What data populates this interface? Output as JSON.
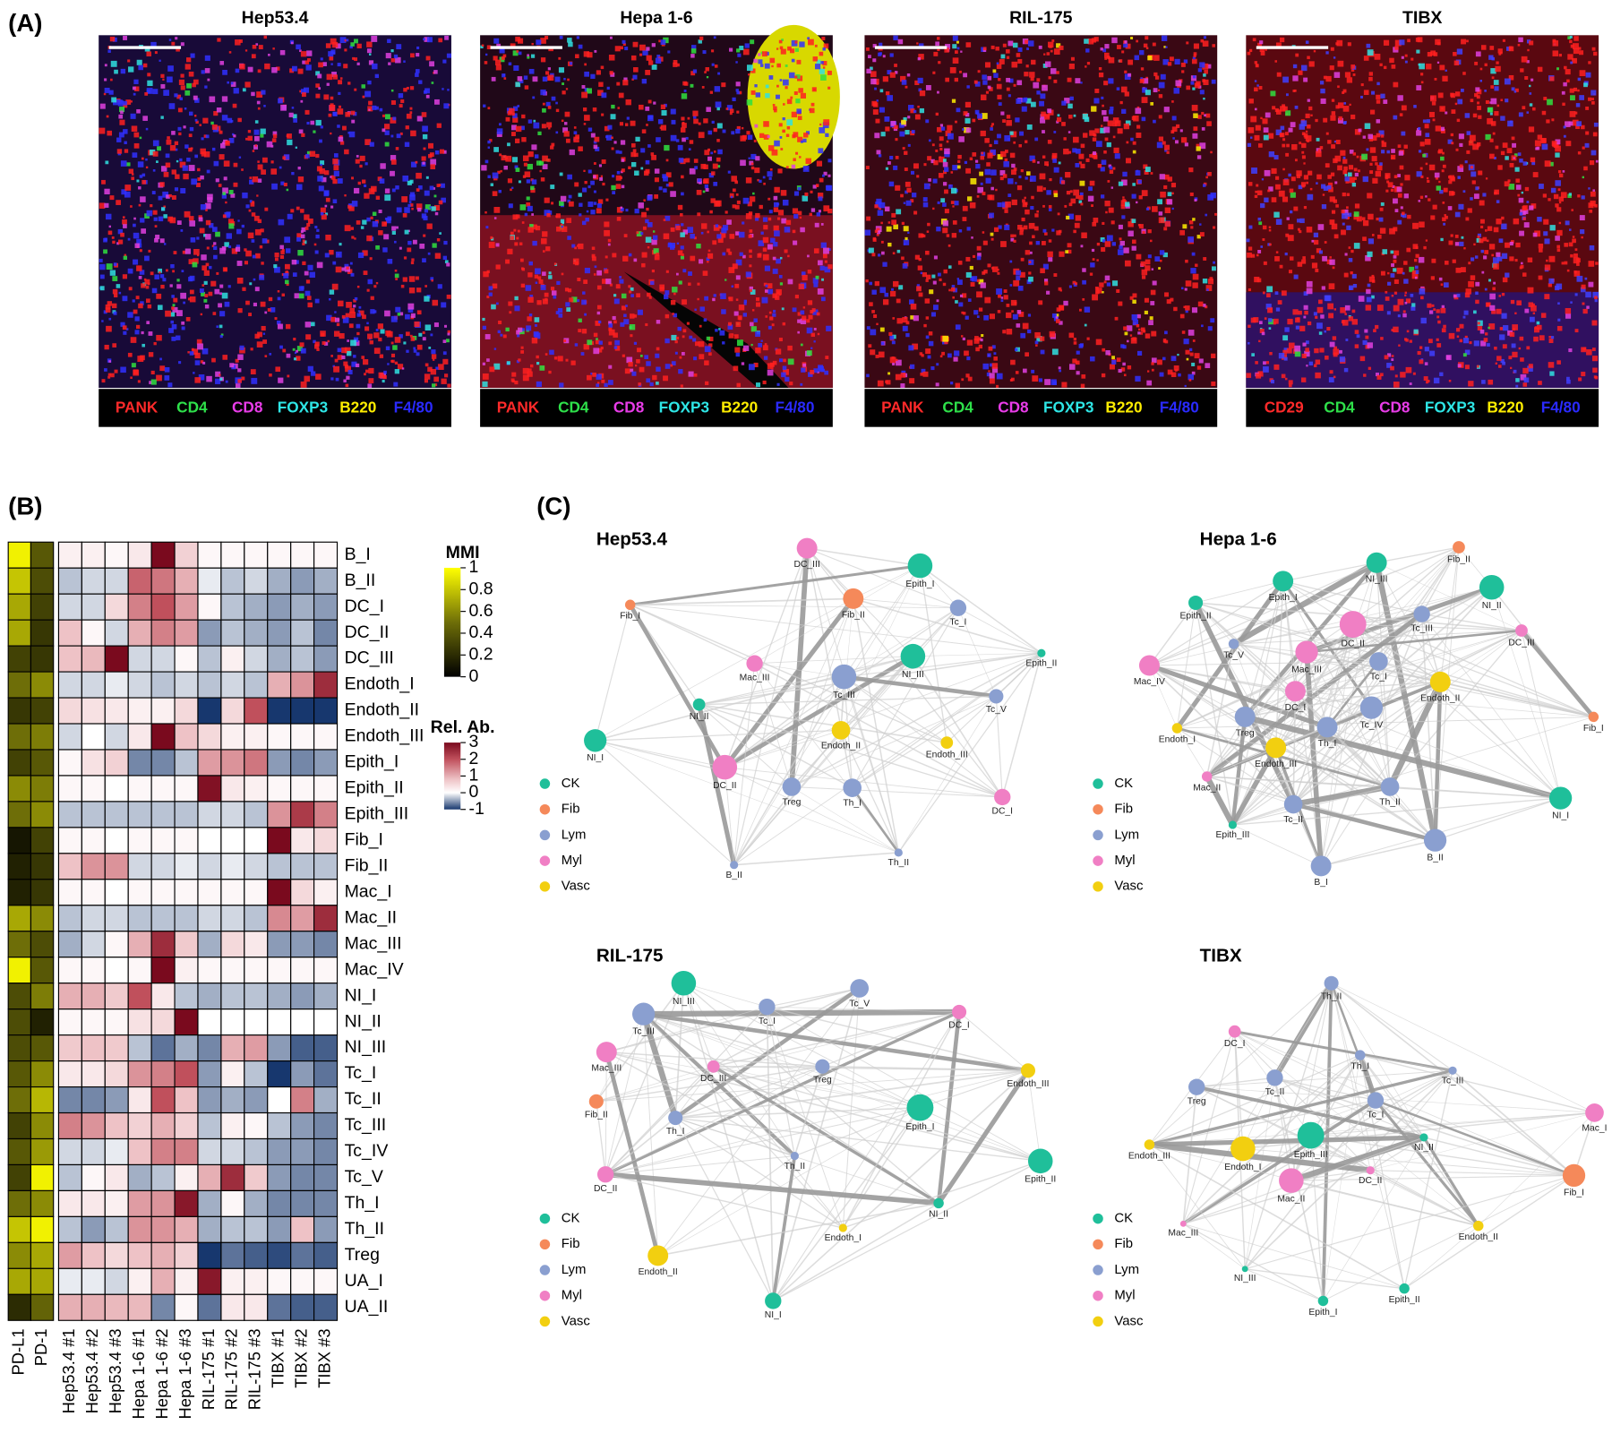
{
  "panels": {
    "A": "(A)",
    "B": "(B)",
    "C": "(C)"
  },
  "images": [
    {
      "title": "Hep53.4",
      "markers": [
        {
          "name": "PANK",
          "color": "#ff2a2a"
        },
        {
          "name": "CD4",
          "color": "#2ee04a"
        },
        {
          "name": "CD8",
          "color": "#e83ce8"
        },
        {
          "name": "FOXP3",
          "color": "#2ee6e6"
        },
        {
          "name": "B220",
          "color": "#ffee00"
        },
        {
          "name": "F4/80",
          "color": "#2a2aff"
        }
      ]
    },
    {
      "title": "Hepa 1-6",
      "markers": [
        {
          "name": "PANK",
          "color": "#ff2a2a"
        },
        {
          "name": "CD4",
          "color": "#2ee04a"
        },
        {
          "name": "CD8",
          "color": "#e83ce8"
        },
        {
          "name": "FOXP3",
          "color": "#2ee6e6"
        },
        {
          "name": "B220",
          "color": "#ffee00"
        },
        {
          "name": "F4/80",
          "color": "#2a2aff"
        }
      ]
    },
    {
      "title": "RIL-175",
      "markers": [
        {
          "name": "PANK",
          "color": "#ff2a2a"
        },
        {
          "name": "CD4",
          "color": "#2ee04a"
        },
        {
          "name": "CD8",
          "color": "#e83ce8"
        },
        {
          "name": "FOXP3",
          "color": "#2ee6e6"
        },
        {
          "name": "B220",
          "color": "#ffee00"
        },
        {
          "name": "F4/80",
          "color": "#2a2aff"
        }
      ]
    },
    {
      "title": "TIBX",
      "markers": [
        {
          "name": "CD29",
          "color": "#ff2a2a"
        },
        {
          "name": "CD4",
          "color": "#2ee04a"
        },
        {
          "name": "CD8",
          "color": "#e83ce8"
        },
        {
          "name": "FOXP3",
          "color": "#2ee6e6"
        },
        {
          "name": "B220",
          "color": "#ffee00"
        },
        {
          "name": "F4/80",
          "color": "#2a2aff"
        }
      ]
    }
  ],
  "heatmap": {
    "rows": [
      "B_I",
      "B_II",
      "DC_I",
      "DC_II",
      "DC_III",
      "Endoth_I",
      "Endoth_II",
      "Endoth_III",
      "Epith_I",
      "Epith_II",
      "Epith_III",
      "Fib_I",
      "Fib_II",
      "Mac_I",
      "Mac_II",
      "Mac_III",
      "Mac_IV",
      "NI_I",
      "NI_II",
      "NI_III",
      "Tc_I",
      "Tc_II",
      "Tc_III",
      "Tc_IV",
      "Tc_V",
      "Th_I",
      "Th_II",
      "Treg",
      "UA_I",
      "UA_II"
    ],
    "mmi_columns": [
      "PD-L1",
      "PD-1"
    ],
    "mmi": [
      [
        0.95,
        0.4
      ],
      [
        0.8,
        0.35
      ],
      [
        0.7,
        0.3
      ],
      [
        0.7,
        0.25
      ],
      [
        0.3,
        0.25
      ],
      [
        0.5,
        0.6
      ],
      [
        0.25,
        0.3
      ],
      [
        0.5,
        0.55
      ],
      [
        0.3,
        0.4
      ],
      [
        0.6,
        0.55
      ],
      [
        0.5,
        0.6
      ],
      [
        0.1,
        0.3
      ],
      [
        0.15,
        0.25
      ],
      [
        0.15,
        0.25
      ],
      [
        0.7,
        0.6
      ],
      [
        0.5,
        0.35
      ],
      [
        0.95,
        0.4
      ],
      [
        0.35,
        0.55
      ],
      [
        0.35,
        0.15
      ],
      [
        0.35,
        0.4
      ],
      [
        0.4,
        0.6
      ],
      [
        0.5,
        0.75
      ],
      [
        0.3,
        0.6
      ],
      [
        0.4,
        0.65
      ],
      [
        0.3,
        0.95
      ],
      [
        0.5,
        0.6
      ],
      [
        0.8,
        0.95
      ],
      [
        0.6,
        0.7
      ],
      [
        0.7,
        0.7
      ],
      [
        0.2,
        0.45
      ]
    ],
    "columns": [
      "Hep53.4 #1",
      "Hep53.4 #2",
      "Hep53.4 #3",
      "Hepa 1-6 #1",
      "Hepa 1-6 #2",
      "Hepa 1-6 #3",
      "RIL-175 #1",
      "RIL-175 #2",
      "RIL-175 #3",
      "TIBX #1",
      "TIBX #2",
      "TIBX #3"
    ],
    "values": [
      [
        0.2,
        0.2,
        0.1,
        0.3,
        3,
        0.6,
        0.1,
        0.1,
        0.1,
        0.1,
        0.1,
        0.1
      ],
      [
        -0.3,
        -0.2,
        -0.2,
        1.8,
        1.6,
        1,
        -0.1,
        -0.3,
        -0.2,
        -0.4,
        -0.5,
        -0.4
      ],
      [
        -0.2,
        -0.2,
        0.5,
        1.5,
        2,
        1.2,
        0.1,
        -0.3,
        -0.4,
        -0.5,
        -0.4,
        -0.5
      ],
      [
        0.8,
        0.1,
        -0.2,
        1,
        1.5,
        1.2,
        -0.5,
        -0.3,
        -0.4,
        -0.5,
        -0.3,
        -0.6
      ],
      [
        0.8,
        0.9,
        3,
        -0.2,
        -0.2,
        0.1,
        -0.3,
        0.2,
        -0.2,
        -0.4,
        -0.3,
        -0.5
      ],
      [
        -0.2,
        -0.2,
        -0.1,
        -0.2,
        -0.3,
        -0.2,
        -0.3,
        -0.2,
        -0.3,
        1,
        1.3,
        2.5
      ],
      [
        0.5,
        0.4,
        0.3,
        0.2,
        0.2,
        0.5,
        -1,
        0.5,
        2,
        -1,
        -1,
        -1
      ],
      [
        -0.2,
        0,
        -0.2,
        0.3,
        3,
        0.8,
        0.5,
        0.2,
        0.2,
        0.1,
        0.1,
        0.1
      ],
      [
        0.1,
        0.4,
        0.6,
        -0.6,
        -0.6,
        -0.3,
        1.2,
        1.3,
        1.6,
        -0.5,
        -0.6,
        -0.5
      ],
      [
        0.1,
        0.1,
        0,
        0.1,
        0.1,
        0.1,
        2.9,
        0.3,
        0.2,
        0.1,
        0.1,
        0.1
      ],
      [
        -0.3,
        -0.3,
        -0.3,
        -0.3,
        -0.3,
        -0.3,
        -0.2,
        -0.2,
        -0.3,
        1.3,
        2.3,
        1.5
      ],
      [
        0.1,
        0.1,
        0,
        0.1,
        0.1,
        0.1,
        0,
        0,
        0,
        3,
        0.3,
        0.5
      ],
      [
        0.8,
        1.3,
        1.3,
        -0.2,
        -0.2,
        -0.1,
        -0.2,
        -0.1,
        -0.2,
        -0.3,
        -0.3,
        -0.3
      ],
      [
        0.1,
        0.1,
        0,
        0.1,
        0.1,
        0.1,
        0.1,
        0.1,
        0.1,
        3,
        0.5,
        0.2
      ],
      [
        -0.3,
        -0.2,
        -0.2,
        -0.3,
        -0.3,
        -0.3,
        -0.2,
        -0.2,
        -0.3,
        1.4,
        1.2,
        2.5
      ],
      [
        -0.4,
        -0.2,
        0.1,
        1,
        2.5,
        0.7,
        -0.4,
        0.5,
        0.3,
        -0.5,
        -0.5,
        -0.6
      ],
      [
        0.1,
        0.1,
        0,
        0.1,
        3,
        0.2,
        0.1,
        0.1,
        0.1,
        0.1,
        0.1,
        0.1
      ],
      [
        1,
        1,
        0.7,
        2,
        0.3,
        -0.3,
        -0.4,
        -0.3,
        -0.3,
        -0.4,
        -0.5,
        -0.4
      ],
      [
        0.1,
        0.1,
        0.1,
        0.4,
        0.5,
        3,
        0,
        0,
        0,
        0,
        0,
        0
      ],
      [
        0.7,
        0.8,
        0.7,
        -0.3,
        -0.7,
        -0.4,
        -0.6,
        1,
        1.2,
        -0.5,
        -0.8,
        -0.8
      ],
      [
        0.3,
        0.3,
        0.5,
        1.3,
        1.5,
        2,
        -0.5,
        0.2,
        -0.3,
        -1,
        -0.5,
        -0.7
      ],
      [
        -0.6,
        -0.6,
        -0.5,
        0.3,
        2,
        0.8,
        -0.5,
        -0.4,
        -0.5,
        0,
        1.5,
        -0.4
      ],
      [
        1.5,
        1.3,
        0.8,
        0.6,
        1,
        0.6,
        -0.3,
        0.2,
        0.1,
        -0.3,
        -0.5,
        -0.6
      ],
      [
        -0.2,
        -0.2,
        -0.1,
        0.8,
        1.5,
        1.5,
        -0.2,
        -0.2,
        -0.3,
        -0.5,
        -0.5,
        -0.6
      ],
      [
        -0.3,
        0.1,
        0.3,
        -0.4,
        -0.3,
        0.2,
        1,
        2.5,
        0.7,
        -0.5,
        -0.6,
        -0.6
      ],
      [
        0.3,
        0.3,
        0.2,
        1.2,
        1.3,
        2.8,
        -0.4,
        0.1,
        -0.4,
        -0.6,
        -0.6,
        -0.6
      ],
      [
        -0.3,
        -0.5,
        -0.3,
        1.3,
        1.3,
        1,
        -0.4,
        -0.3,
        -0.3,
        -0.5,
        0.8,
        -0.5
      ],
      [
        1.2,
        0.8,
        0.5,
        0.8,
        1,
        0.6,
        -1,
        -0.7,
        -0.8,
        -0.9,
        -0.7,
        -0.8
      ],
      [
        -0.1,
        -0.1,
        -0.2,
        0.2,
        1,
        0.2,
        2.8,
        0.2,
        0.2,
        0.1,
        0.1,
        0.1
      ],
      [
        1,
        1,
        0.9,
        0.9,
        -0.6,
        0.1,
        -0.7,
        0.3,
        0.3,
        -0.7,
        -0.8,
        -0.8
      ]
    ],
    "mmi_legend": {
      "title": "MMI",
      "lim": [
        0,
        1
      ],
      "ticks": [
        0,
        0.2,
        0.4,
        0.6,
        0.8,
        1
      ]
    },
    "relab_legend": {
      "title": "Rel. Ab.",
      "lim": [
        -1,
        3
      ],
      "ticks": [
        -1,
        0,
        1,
        2,
        3
      ]
    }
  },
  "networks": {
    "groups": [
      {
        "name": "CK",
        "color": "#1fbf9a"
      },
      {
        "name": "Fib",
        "color": "#f5895a"
      },
      {
        "name": "Lym",
        "color": "#8a9fd0"
      },
      {
        "name": "Myl",
        "color": "#f07fc4"
      },
      {
        "name": "Vasc",
        "color": "#f2cf10"
      }
    ],
    "graphs": [
      {
        "title": "Hep53.4",
        "nodes": [
          {
            "label": "DC_III",
            "group": "Myl"
          },
          {
            "label": "Epith_I",
            "group": "CK"
          },
          {
            "label": "Fib_II",
            "group": "Fib"
          },
          {
            "label": "Tc_I",
            "group": "Lym"
          },
          {
            "label": "Fib_I",
            "group": "Fib"
          },
          {
            "label": "NI_III",
            "group": "CK"
          },
          {
            "label": "Epith_II",
            "group": "CK"
          },
          {
            "label": "Mac_III",
            "group": "Myl"
          },
          {
            "label": "Tc_III",
            "group": "Lym"
          },
          {
            "label": "Tc_V",
            "group": "Lym"
          },
          {
            "label": "NI_II",
            "group": "CK"
          },
          {
            "label": "NI_I",
            "group": "CK"
          },
          {
            "label": "Endoth_II",
            "group": "Vasc"
          },
          {
            "label": "Endoth_III",
            "group": "Vasc"
          },
          {
            "label": "DC_II",
            "group": "Myl"
          },
          {
            "label": "Treg",
            "group": "Lym"
          },
          {
            "label": "Th_I",
            "group": "Lym"
          },
          {
            "label": "DC_I",
            "group": "Myl"
          },
          {
            "label": "B_II",
            "group": "Lym"
          },
          {
            "label": "Th_II",
            "group": "Lym"
          }
        ]
      },
      {
        "title": "Hepa 1-6",
        "nodes": [
          {
            "label": "Fib_II",
            "group": "Fib"
          },
          {
            "label": "NI_III",
            "group": "CK"
          },
          {
            "label": "Epith_I",
            "group": "CK"
          },
          {
            "label": "NI_II",
            "group": "CK"
          },
          {
            "label": "Epith_II",
            "group": "CK"
          },
          {
            "label": "DC_II",
            "group": "Myl"
          },
          {
            "label": "Tc_III",
            "group": "Lym"
          },
          {
            "label": "DC_III",
            "group": "Myl"
          },
          {
            "label": "Tc_V",
            "group": "Lym"
          },
          {
            "label": "Mac_IV",
            "group": "Myl"
          },
          {
            "label": "Mac_III",
            "group": "Myl"
          },
          {
            "label": "Tc_I",
            "group": "Lym"
          },
          {
            "label": "Endoth_II",
            "group": "Vasc"
          },
          {
            "label": "DC_I",
            "group": "Myl"
          },
          {
            "label": "Fib_I",
            "group": "Fib"
          },
          {
            "label": "Endoth_I",
            "group": "Vasc"
          },
          {
            "label": "Treg",
            "group": "Lym"
          },
          {
            "label": "Tc_IV",
            "group": "Lym"
          },
          {
            "label": "Th_I",
            "group": "Lym"
          },
          {
            "label": "Endoth_III",
            "group": "Vasc"
          },
          {
            "label": "Mac_II",
            "group": "Myl"
          },
          {
            "label": "Th_II",
            "group": "Lym"
          },
          {
            "label": "NI_I",
            "group": "CK"
          },
          {
            "label": "Tc_II",
            "group": "Lym"
          },
          {
            "label": "Epith_III",
            "group": "CK"
          },
          {
            "label": "B_II",
            "group": "Lym"
          },
          {
            "label": "B_I",
            "group": "Lym"
          }
        ]
      },
      {
        "title": "RIL-175",
        "nodes": [
          {
            "label": "NI_III",
            "group": "CK"
          },
          {
            "label": "Tc_V",
            "group": "Lym"
          },
          {
            "label": "Tc_III",
            "group": "Lym"
          },
          {
            "label": "Tc_I",
            "group": "Lym"
          },
          {
            "label": "DC_I",
            "group": "Myl"
          },
          {
            "label": "Mac_III",
            "group": "Myl"
          },
          {
            "label": "DC_III",
            "group": "Myl"
          },
          {
            "label": "Treg",
            "group": "Lym"
          },
          {
            "label": "Endoth_III",
            "group": "Vasc"
          },
          {
            "label": "Fib_II",
            "group": "Fib"
          },
          {
            "label": "Th_I",
            "group": "Lym"
          },
          {
            "label": "Epith_I",
            "group": "CK"
          },
          {
            "label": "Epith_II",
            "group": "CK"
          },
          {
            "label": "Th_II",
            "group": "Lym"
          },
          {
            "label": "DC_II",
            "group": "Myl"
          },
          {
            "label": "NI_II",
            "group": "CK"
          },
          {
            "label": "Endoth_I",
            "group": "Vasc"
          },
          {
            "label": "Endoth_II",
            "group": "Vasc"
          },
          {
            "label": "NI_I",
            "group": "CK"
          }
        ]
      },
      {
        "title": "TIBX",
        "nodes": [
          {
            "label": "Th_II",
            "group": "Lym"
          },
          {
            "label": "DC_I",
            "group": "Myl"
          },
          {
            "label": "Th_I",
            "group": "Lym"
          },
          {
            "label": "Tc_II",
            "group": "Lym"
          },
          {
            "label": "Tc_III",
            "group": "Lym"
          },
          {
            "label": "Treg",
            "group": "Lym"
          },
          {
            "label": "Mac_I",
            "group": "Myl"
          },
          {
            "label": "Tc_I",
            "group": "Lym"
          },
          {
            "label": "Epith_III",
            "group": "CK"
          },
          {
            "label": "Endoth_III",
            "group": "Vasc"
          },
          {
            "label": "Endoth_I",
            "group": "Vasc"
          },
          {
            "label": "NI_II",
            "group": "CK"
          },
          {
            "label": "DC_II",
            "group": "Myl"
          },
          {
            "label": "Mac_II",
            "group": "Myl"
          },
          {
            "label": "Fib_I",
            "group": "Fib"
          },
          {
            "label": "Mac_III",
            "group": "Myl"
          },
          {
            "label": "Endoth_II",
            "group": "Vasc"
          },
          {
            "label": "NI_III",
            "group": "CK"
          },
          {
            "label": "Epith_II",
            "group": "CK"
          },
          {
            "label": "Epith_I",
            "group": "CK"
          }
        ]
      }
    ]
  }
}
